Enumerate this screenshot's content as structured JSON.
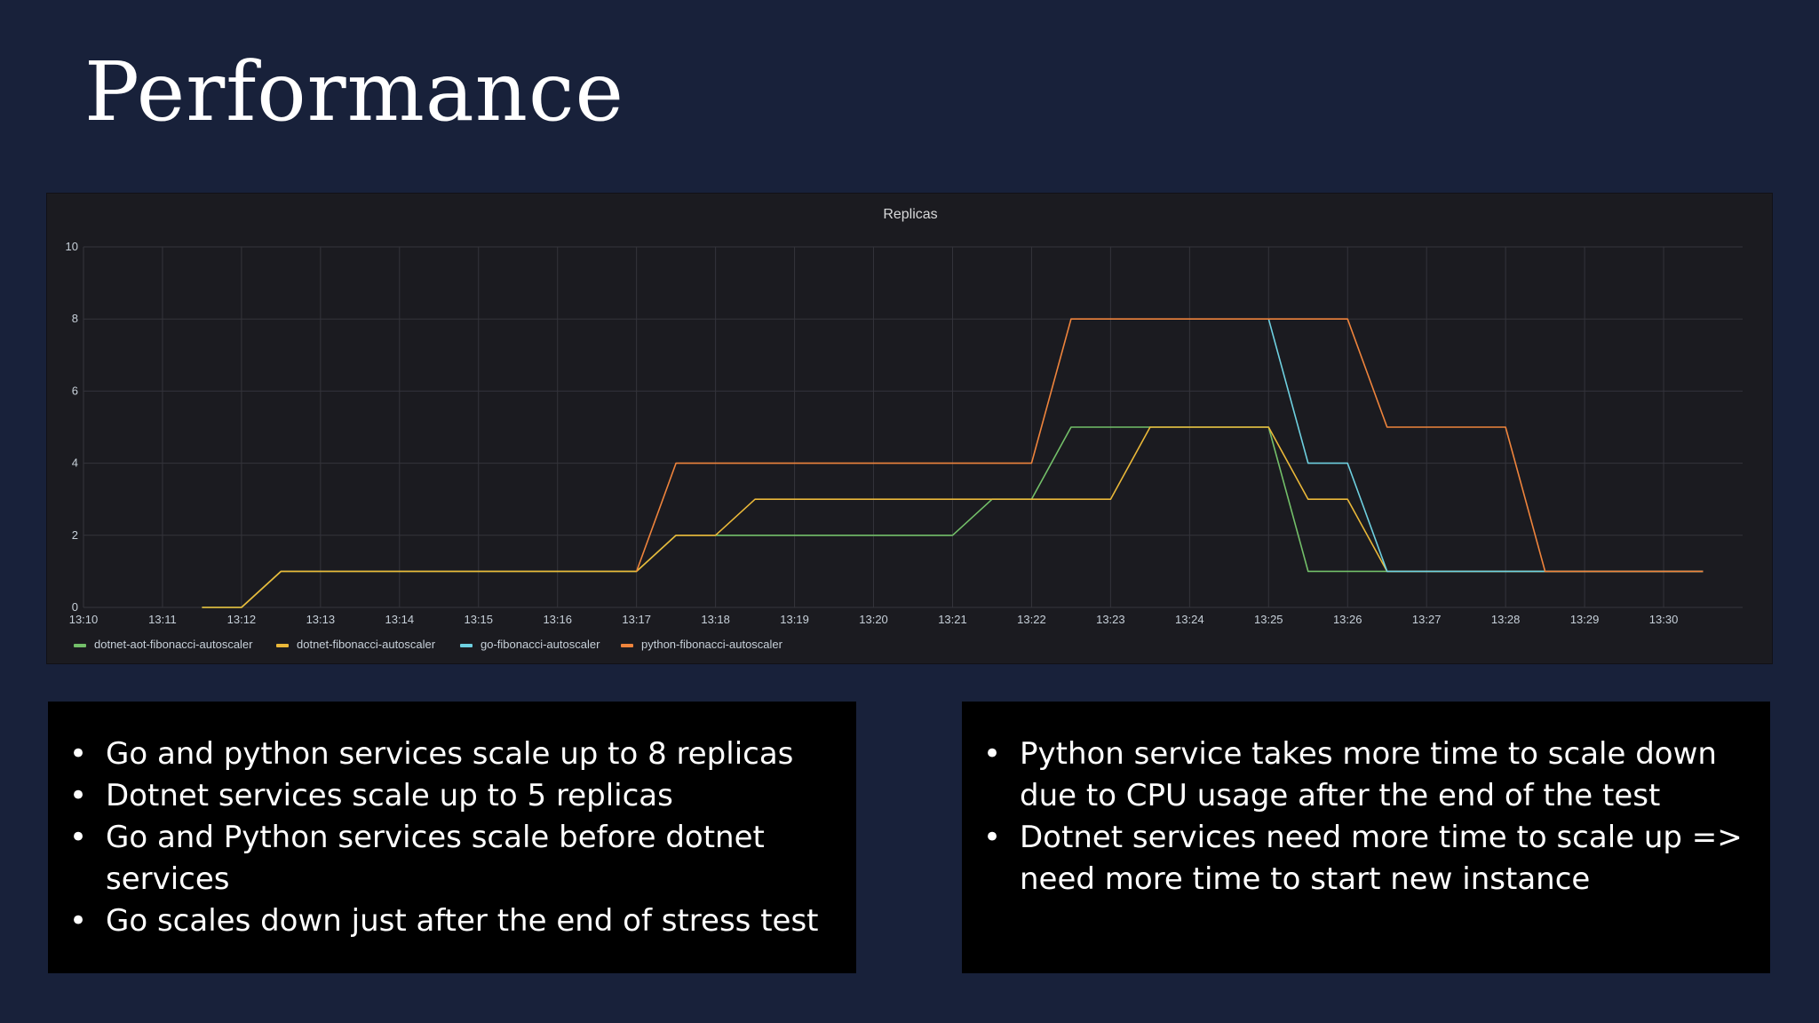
{
  "slide": {
    "title": "Performance"
  },
  "notes_left": [
    "Go and python services scale  up to 8 replicas",
    "Dotnet services scale up to 5 replicas",
    "Go and Python services scale before dotnet services",
    "Go scales down just after the end of stress test"
  ],
  "notes_right": [
    "Python  service takes more time to scale down due to CPU usage after the end of the test",
    "Dotnet services need more time to scale up => need more time to start new instance"
  ],
  "chart_data": {
    "type": "line",
    "title": "Replicas",
    "xlabel": "",
    "ylabel": "",
    "x_ticks": [
      "13:10",
      "13:11",
      "13:12",
      "13:13",
      "13:14",
      "13:15",
      "13:16",
      "13:17",
      "13:18",
      "13:19",
      "13:20",
      "13:21",
      "13:22",
      "13:23",
      "13:24",
      "13:25",
      "13:26",
      "13:27",
      "13:28",
      "13:29",
      "13:30"
    ],
    "y_ticks": [
      0,
      2,
      4,
      6,
      8,
      10
    ],
    "ylim": [
      0,
      10
    ],
    "xlim_minutes": [
      "13:10",
      "13:31"
    ],
    "grid": true,
    "legend_position": "bottom-left",
    "series": [
      {
        "name": "dotnet-aot-fibonacci-autoscaler",
        "color": "#73bf69",
        "points": [
          [
            "13:11.5",
            0
          ],
          [
            "13:12",
            0
          ],
          [
            "13:12.5",
            1
          ],
          [
            "13:17",
            1
          ],
          [
            "13:17.5",
            2
          ],
          [
            "13:21",
            2
          ],
          [
            "13:21.5",
            3
          ],
          [
            "13:22",
            3
          ],
          [
            "13:22.5",
            5
          ],
          [
            "13:23",
            5
          ],
          [
            "13:23.5",
            5
          ],
          [
            "13:25",
            5
          ],
          [
            "13:25.5",
            1
          ],
          [
            "13:26",
            1
          ],
          [
            "13:26.5",
            1
          ],
          [
            "13:28",
            1
          ],
          [
            "13:28.5",
            1
          ],
          [
            "13:30.5",
            1
          ]
        ]
      },
      {
        "name": "dotnet-fibonacci-autoscaler",
        "color": "#eab839",
        "points": [
          [
            "13:11.5",
            0
          ],
          [
            "13:12",
            0
          ],
          [
            "13:12.5",
            1
          ],
          [
            "13:17",
            1
          ],
          [
            "13:17.5",
            2
          ],
          [
            "13:18",
            2
          ],
          [
            "13:18.5",
            3
          ],
          [
            "13:22",
            3
          ],
          [
            "13:23",
            3
          ],
          [
            "13:23.5",
            5
          ],
          [
            "13:25",
            5
          ],
          [
            "13:25.5",
            3
          ],
          [
            "13:26",
            3
          ],
          [
            "13:26.5",
            1
          ],
          [
            "13:28",
            1
          ],
          [
            "13:28.5",
            1
          ],
          [
            "13:30.5",
            1
          ]
        ]
      },
      {
        "name": "go-fibonacci-autoscaler",
        "color": "#6ed0e0",
        "points": [
          [
            "13:25",
            8
          ],
          [
            "13:25.5",
            4
          ],
          [
            "13:26",
            4
          ],
          [
            "13:26.5",
            1
          ],
          [
            "13:28",
            1
          ],
          [
            "13:28.5",
            1
          ],
          [
            "13:30.5",
            1
          ]
        ]
      },
      {
        "name": "python-fibonacci-autoscaler",
        "color": "#ef843c",
        "points": [
          [
            "13:17",
            1
          ],
          [
            "13:17.5",
            4
          ],
          [
            "13:22",
            4
          ],
          [
            "13:22.5",
            8
          ],
          [
            "13:26",
            8
          ],
          [
            "13:26.5",
            5
          ],
          [
            "13:28",
            5
          ],
          [
            "13:28.5",
            1
          ],
          [
            "13:30.5",
            1
          ]
        ]
      }
    ]
  }
}
